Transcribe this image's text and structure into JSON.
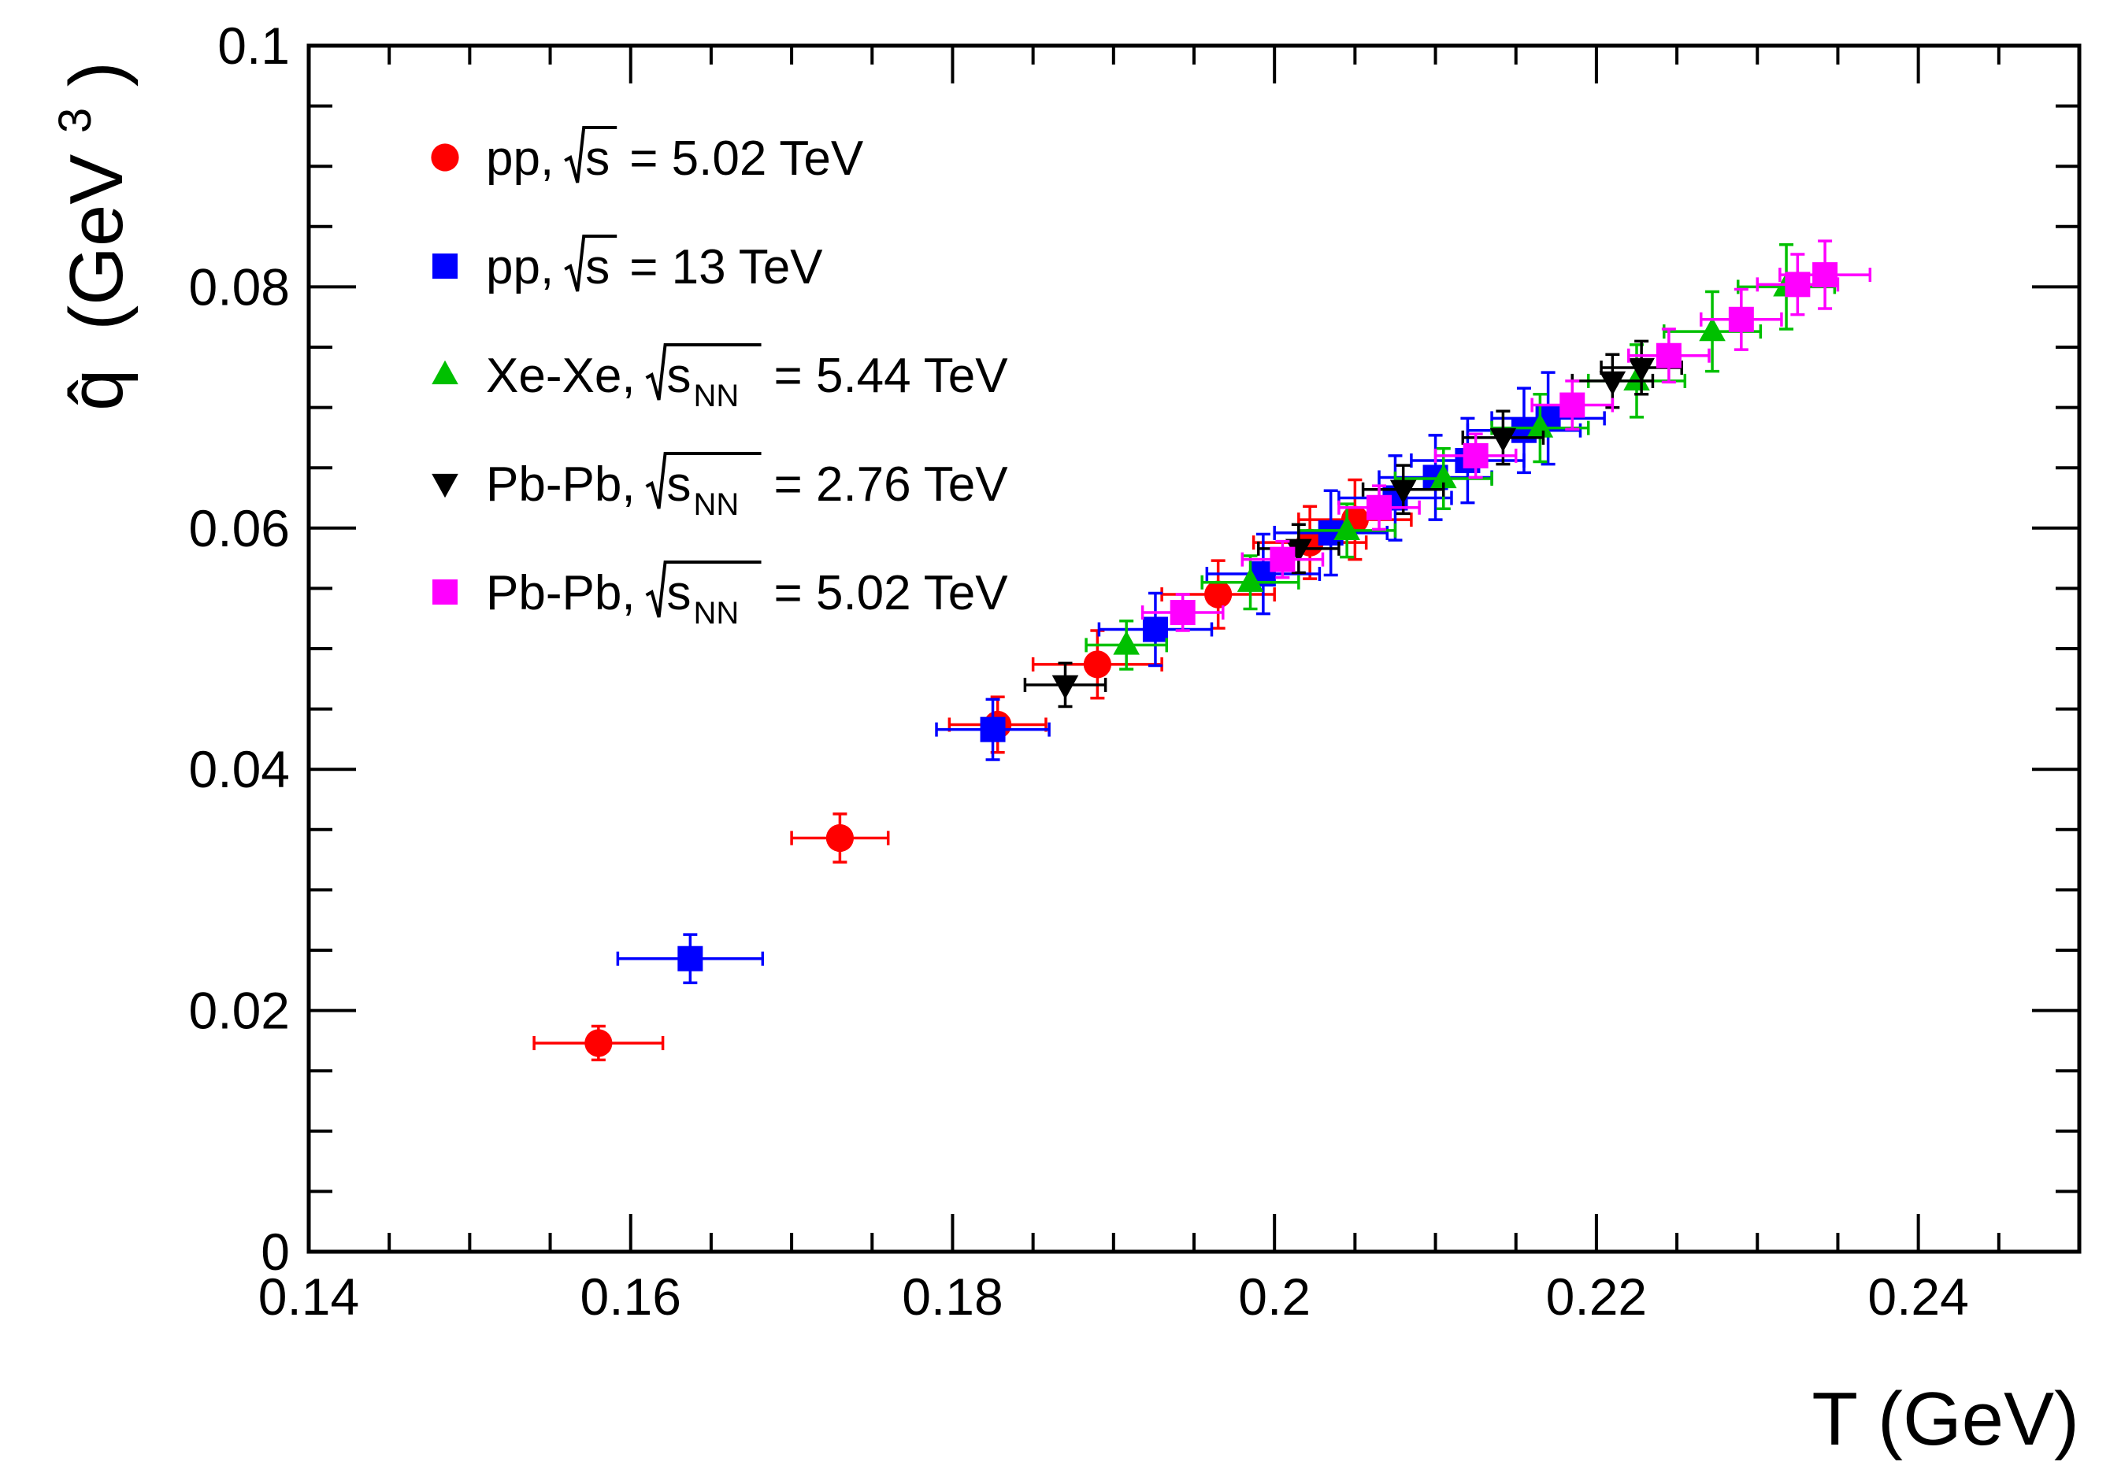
{
  "chart_data": {
    "type": "scatter",
    "title": "",
    "xlabel": "T (GeV)",
    "ylabel": {
      "symbol": "q̂",
      "unit_prefix": "(GeV",
      "unit_exp": "3",
      "unit_suffix": ")"
    },
    "xlim": [
      0.14,
      0.25
    ],
    "ylim": [
      0,
      0.1
    ],
    "grid": false,
    "legend_position": "top-left",
    "x_ticks": [
      {
        "value": 0.14,
        "label": "0.14"
      },
      {
        "value": 0.16,
        "label": "0.16"
      },
      {
        "value": 0.18,
        "label": "0.18"
      },
      {
        "value": 0.2,
        "label": "0.2"
      },
      {
        "value": 0.22,
        "label": "0.22"
      },
      {
        "value": 0.24,
        "label": "0.24"
      }
    ],
    "y_ticks": [
      {
        "value": 0,
        "label": "0"
      },
      {
        "value": 0.02,
        "label": "0.02"
      },
      {
        "value": 0.04,
        "label": "0.04"
      },
      {
        "value": 0.06,
        "label": "0.06"
      },
      {
        "value": 0.08,
        "label": "0.08"
      },
      {
        "value": 0.1,
        "label": "0.1"
      }
    ],
    "series": [
      {
        "name": "pp-5.02",
        "legend": {
          "system": "pp,",
          "sqrt_label": "s",
          "sub": "",
          "energy": "= 5.02 TeV"
        },
        "marker": "circle",
        "color": "#ff0000",
        "points": [
          {
            "x": 0.158,
            "y": 0.0173,
            "xerr": 0.004,
            "yerr": 0.0014
          },
          {
            "x": 0.173,
            "y": 0.0343,
            "xerr": 0.003,
            "yerr": 0.002
          },
          {
            "x": 0.1828,
            "y": 0.0437,
            "xerr": 0.003,
            "yerr": 0.0023
          },
          {
            "x": 0.189,
            "y": 0.0487,
            "xerr": 0.004,
            "yerr": 0.0028
          },
          {
            "x": 0.1965,
            "y": 0.0545,
            "xerr": 0.0035,
            "yerr": 0.0028
          },
          {
            "x": 0.2022,
            "y": 0.0588,
            "xerr": 0.0035,
            "yerr": 0.003
          },
          {
            "x": 0.205,
            "y": 0.0607,
            "xerr": 0.0035,
            "yerr": 0.0033
          }
        ]
      },
      {
        "name": "pp-13",
        "legend": {
          "system": "pp,",
          "sqrt_label": "s",
          "sub": "",
          "energy": "= 13 TeV"
        },
        "marker": "square",
        "color": "#0000ff",
        "points": [
          {
            "x": 0.1637,
            "y": 0.0243,
            "xerr": 0.0045,
            "yerr": 0.002
          },
          {
            "x": 0.1825,
            "y": 0.0433,
            "xerr": 0.0035,
            "yerr": 0.0025
          },
          {
            "x": 0.1926,
            "y": 0.0516,
            "xerr": 0.0035,
            "yerr": 0.003
          },
          {
            "x": 0.1993,
            "y": 0.0562,
            "xerr": 0.0035,
            "yerr": 0.0033
          },
          {
            "x": 0.2035,
            "y": 0.0596,
            "xerr": 0.0035,
            "yerr": 0.0035
          },
          {
            "x": 0.2075,
            "y": 0.0625,
            "xerr": 0.0035,
            "yerr": 0.0035
          },
          {
            "x": 0.21,
            "y": 0.0642,
            "xerr": 0.0035,
            "yerr": 0.0035
          },
          {
            "x": 0.212,
            "y": 0.0656,
            "xerr": 0.0035,
            "yerr": 0.0035
          },
          {
            "x": 0.2155,
            "y": 0.0681,
            "xerr": 0.0035,
            "yerr": 0.0035
          },
          {
            "x": 0.217,
            "y": 0.0691,
            "xerr": 0.0035,
            "yerr": 0.0038
          }
        ]
      },
      {
        "name": "xexe-5.44",
        "legend": {
          "system": "Xe-Xe,",
          "sqrt_label": "s",
          "sub": "NN",
          "energy": "= 5.44 TeV"
        },
        "marker": "triangle-up",
        "color": "#00c000",
        "points": [
          {
            "x": 0.1908,
            "y": 0.0503,
            "xerr": 0.0025,
            "yerr": 0.002
          },
          {
            "x": 0.1985,
            "y": 0.0555,
            "xerr": 0.003,
            "yerr": 0.0022
          },
          {
            "x": 0.2045,
            "y": 0.0598,
            "xerr": 0.003,
            "yerr": 0.0022
          },
          {
            "x": 0.2105,
            "y": 0.0641,
            "xerr": 0.003,
            "yerr": 0.0025
          },
          {
            "x": 0.2165,
            "y": 0.0683,
            "xerr": 0.003,
            "yerr": 0.0028
          },
          {
            "x": 0.2225,
            "y": 0.0722,
            "xerr": 0.003,
            "yerr": 0.003
          },
          {
            "x": 0.2272,
            "y": 0.0763,
            "xerr": 0.003,
            "yerr": 0.0033
          },
          {
            "x": 0.2318,
            "y": 0.08,
            "xerr": 0.003,
            "yerr": 0.0035
          }
        ]
      },
      {
        "name": "pbpb-2.76",
        "legend": {
          "system": "Pb-Pb,",
          "sqrt_label": "s",
          "sub": "NN",
          "energy": "= 2.76 TeV"
        },
        "marker": "triangle-down",
        "color": "#000000",
        "points": [
          {
            "x": 0.187,
            "y": 0.047,
            "xerr": 0.0025,
            "yerr": 0.0018
          },
          {
            "x": 0.2015,
            "y": 0.0583,
            "xerr": 0.0025,
            "yerr": 0.002
          },
          {
            "x": 0.208,
            "y": 0.0632,
            "xerr": 0.0025,
            "yerr": 0.002
          },
          {
            "x": 0.2142,
            "y": 0.0675,
            "xerr": 0.0025,
            "yerr": 0.0022
          },
          {
            "x": 0.221,
            "y": 0.0722,
            "xerr": 0.0025,
            "yerr": 0.0022
          },
          {
            "x": 0.2228,
            "y": 0.0733,
            "xerr": 0.0025,
            "yerr": 0.0022
          }
        ]
      },
      {
        "name": "pbpb-5.02",
        "legend": {
          "system": "Pb-Pb,",
          "sqrt_label": "s",
          "sub": "NN",
          "energy": "= 5.02 TeV"
        },
        "marker": "square",
        "color": "#ff00ff",
        "points": [
          {
            "x": 0.1943,
            "y": 0.053,
            "xerr": 0.0025,
            "yerr": 0.0015
          },
          {
            "x": 0.2005,
            "y": 0.0574,
            "xerr": 0.0025,
            "yerr": 0.0015
          },
          {
            "x": 0.2065,
            "y": 0.0617,
            "xerr": 0.0025,
            "yerr": 0.0018
          },
          {
            "x": 0.2125,
            "y": 0.066,
            "xerr": 0.0025,
            "yerr": 0.0018
          },
          {
            "x": 0.2185,
            "y": 0.0702,
            "xerr": 0.0025,
            "yerr": 0.002
          },
          {
            "x": 0.2245,
            "y": 0.0743,
            "xerr": 0.0025,
            "yerr": 0.0022
          },
          {
            "x": 0.229,
            "y": 0.0773,
            "xerr": 0.0025,
            "yerr": 0.0025
          },
          {
            "x": 0.2325,
            "y": 0.0802,
            "xerr": 0.0025,
            "yerr": 0.0025
          },
          {
            "x": 0.2342,
            "y": 0.081,
            "xerr": 0.0028,
            "yerr": 0.0028
          }
        ]
      }
    ]
  }
}
